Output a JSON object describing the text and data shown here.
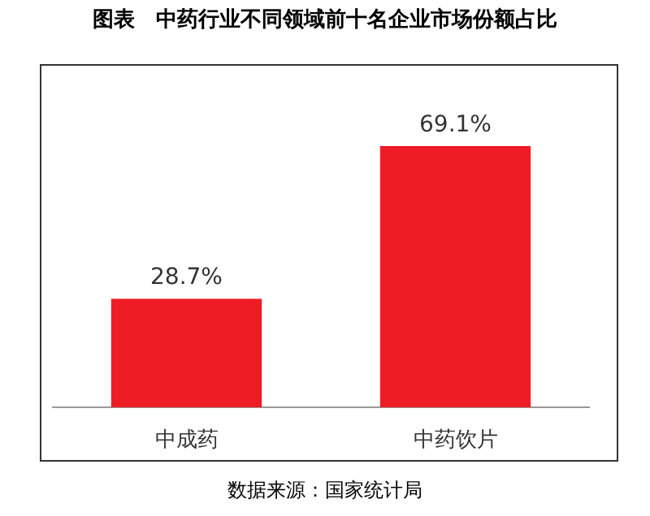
{
  "chart_data": {
    "type": "bar",
    "title": "图表　中药行业不同领域前十名企业市场份额占比",
    "categories": [
      "中成药",
      "中药饮片"
    ],
    "values": [
      28.7,
      69.1
    ],
    "color": "#ee1c24",
    "data_labels": true,
    "value_labels": [
      "28.7%",
      "69.1%"
    ],
    "annotations": [
      "数据来源：国家统计局"
    ]
  }
}
